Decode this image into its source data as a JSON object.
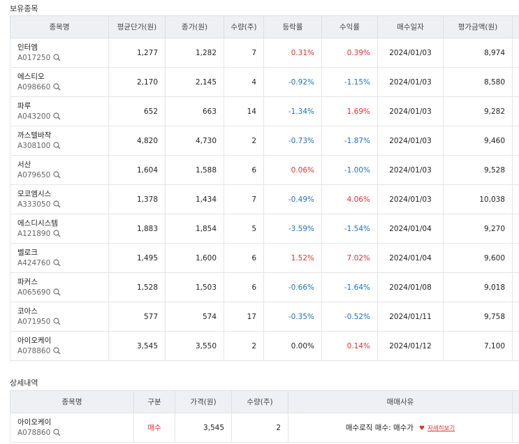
{
  "holdings": {
    "title": "보유종목",
    "columns": [
      "종목명",
      "평균단가(원)",
      "종가(원)",
      "수량(주)",
      "등락률",
      "수익률",
      "매수일자",
      "평가금액(원)"
    ],
    "rows": [
      {
        "name": "인터엠",
        "code": "A017250",
        "avg": "1,277",
        "close": "1,282",
        "qty": "7",
        "change": "0.31%",
        "return": "0.39%",
        "date": "2024/01/03",
        "value": "8,974"
      },
      {
        "name": "에스티오",
        "code": "A098660",
        "avg": "2,170",
        "close": "2,145",
        "qty": "4",
        "change": "-0.92%",
        "return": "-1.15%",
        "date": "2024/01/03",
        "value": "8,580"
      },
      {
        "name": "파루",
        "code": "A043200",
        "avg": "652",
        "close": "663",
        "qty": "14",
        "change": "-1.34%",
        "return": "1.69%",
        "date": "2024/01/03",
        "value": "9,282"
      },
      {
        "name": "까스텔바작",
        "code": "A308100",
        "avg": "4,820",
        "close": "4,730",
        "qty": "2",
        "change": "-0.73%",
        "return": "-1.87%",
        "date": "2024/01/03",
        "value": "9,460"
      },
      {
        "name": "서산",
        "code": "A079650",
        "avg": "1,604",
        "close": "1,588",
        "qty": "6",
        "change": "0.06%",
        "return": "-1.00%",
        "date": "2024/01/03",
        "value": "9,528"
      },
      {
        "name": "모코엠시스",
        "code": "A333050",
        "avg": "1,378",
        "close": "1,434",
        "qty": "7",
        "change": "-0.49%",
        "return": "4.06%",
        "date": "2024/01/03",
        "value": "10,038"
      },
      {
        "name": "에스디시스템",
        "code": "A121890",
        "avg": "1,883",
        "close": "1,854",
        "qty": "5",
        "change": "-3.59%",
        "return": "-1.54%",
        "date": "2024/01/04",
        "value": "9,270"
      },
      {
        "name": "벨로크",
        "code": "A424760",
        "avg": "1,495",
        "close": "1,600",
        "qty": "6",
        "change": "1.52%",
        "return": "7.02%",
        "date": "2024/01/04",
        "value": "9,600"
      },
      {
        "name": "파커스",
        "code": "A065690",
        "avg": "1,528",
        "close": "1,503",
        "qty": "6",
        "change": "-0.66%",
        "return": "-1.64%",
        "date": "2024/01/08",
        "value": "9,018"
      },
      {
        "name": "코아스",
        "code": "A071950",
        "avg": "577",
        "close": "574",
        "qty": "17",
        "change": "-0.35%",
        "return": "-0.52%",
        "date": "2024/01/11",
        "value": "9,758"
      },
      {
        "name": "아이오케이",
        "code": "A078860",
        "avg": "3,545",
        "close": "3,550",
        "qty": "2",
        "change": "0.00%",
        "return": "0.14%",
        "date": "2024/01/12",
        "value": "7,100"
      }
    ]
  },
  "details": {
    "title": "상세내역",
    "columns": [
      "종목명",
      "구분",
      "가격(원)",
      "수량(주)",
      "매매사유"
    ],
    "rows": [
      {
        "name": "아이오케이",
        "code": "A078860",
        "type": "매수",
        "price": "3,545",
        "qty": "2",
        "reason": "매수로직 매수: 매수가",
        "link": "자세히보기"
      }
    ]
  }
}
